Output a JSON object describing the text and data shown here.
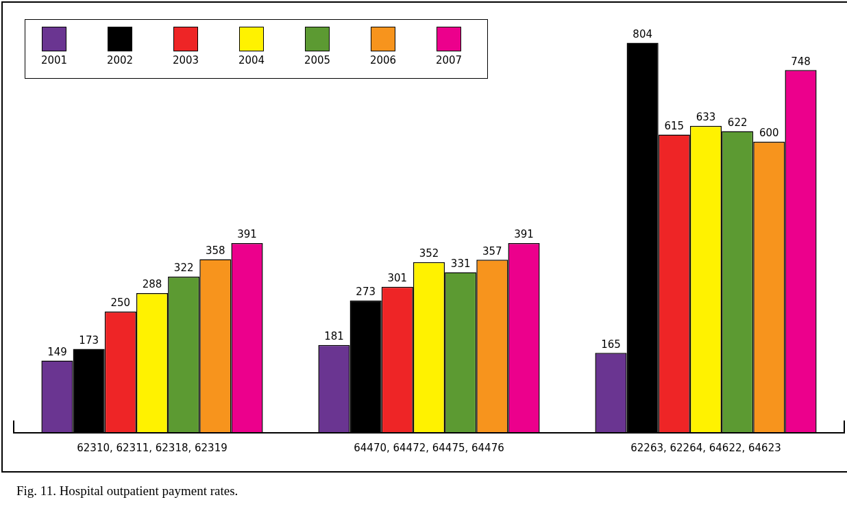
{
  "chart_data": {
    "type": "bar",
    "categories": [
      "62310, 62311, 62318, 62319",
      "64470, 64472, 64475, 64476",
      "62263, 62264, 64622, 64623"
    ],
    "series": [
      {
        "name": "2001",
        "color": "#6a3591",
        "values": [
          149,
          181,
          165
        ]
      },
      {
        "name": "2002",
        "color": "#000000",
        "values": [
          173,
          273,
          804
        ]
      },
      {
        "name": "2003",
        "color": "#ee2526",
        "values": [
          250,
          301,
          615
        ]
      },
      {
        "name": "2004",
        "color": "#fff200",
        "values": [
          288,
          352,
          633
        ]
      },
      {
        "name": "2005",
        "color": "#5c9a32",
        "values": [
          322,
          331,
          622
        ]
      },
      {
        "name": "2006",
        "color": "#f7941d",
        "values": [
          358,
          357,
          600
        ]
      },
      {
        "name": "2007",
        "color": "#ec008c",
        "values": [
          391,
          391,
          748
        ]
      }
    ],
    "ylim": [
      0,
      850
    ],
    "data_labels": true,
    "legend": "top left",
    "grid": false,
    "tick_labels": "x",
    "annotations": [
      "Fig. 11. Hospital outpatient payment rates."
    ]
  }
}
